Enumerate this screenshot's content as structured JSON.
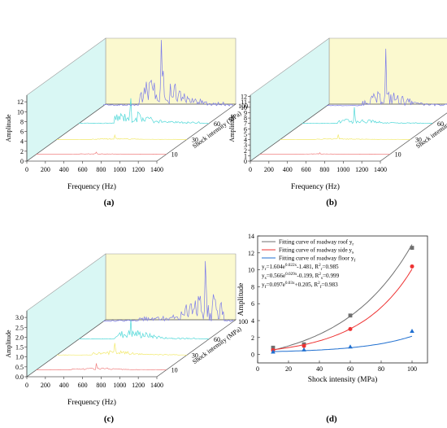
{
  "chart_data": [
    {
      "panel": "(a)",
      "type": "line",
      "xlabel": "Frequency (Hz)",
      "ylabel": "Amplitude",
      "x_ticks": [
        "0",
        "200",
        "400",
        "600",
        "800",
        "1000",
        "1200",
        "1400"
      ],
      "y_ticks": [
        "0",
        "2",
        "4",
        "6",
        "8",
        "10",
        "12"
      ],
      "z_ticks": [
        "10",
        "30",
        "60",
        "100"
      ],
      "depth_label": "Shock intensity (MPa)",
      "xlim": [
        0,
        1400
      ],
      "ylim": [
        0,
        12
      ],
      "series": [
        {
          "depth": "10",
          "color": "#f08080",
          "peak_x": 650,
          "peak": 0.4,
          "noise": 0.12
        },
        {
          "depth": "30",
          "color": "#f2e96a",
          "peak_x": 620,
          "peak": 0.8,
          "noise": 0.2
        },
        {
          "depth": "60",
          "color": "#4fd8d8",
          "peak_x": 560,
          "peak": 4.6,
          "noise": 2.2
        },
        {
          "depth": "100",
          "color": "#7b7bea",
          "peak_x": 620,
          "peak": 12.6,
          "noise": 6.0
        }
      ]
    },
    {
      "panel": "(b)",
      "type": "line",
      "xlabel": "Frequency (Hz)",
      "ylabel": "Amplitude",
      "x_ticks": [
        "0",
        "200",
        "400",
        "600",
        "800",
        "1000",
        "1200",
        "1400"
      ],
      "y_ticks": [
        "0",
        "1",
        "2",
        "3",
        "4",
        "5",
        "6",
        "7",
        "8",
        "9",
        "10",
        "11",
        "12"
      ],
      "z_ticks": [
        "10",
        "30",
        "60",
        "100"
      ],
      "depth_label": "Shock intensity (MPa)",
      "xlim": [
        0,
        1400
      ],
      "ylim": [
        0,
        12
      ],
      "series": [
        {
          "depth": "10",
          "color": "#f08080",
          "peak_x": 650,
          "peak": 0.3,
          "noise": 0.1
        },
        {
          "depth": "30",
          "color": "#f2e96a",
          "peak_x": 620,
          "peak": 0.9,
          "noise": 0.2
        },
        {
          "depth": "60",
          "color": "#4fd8d8",
          "peak_x": 560,
          "peak": 3.0,
          "noise": 1.0
        },
        {
          "depth": "100",
          "color": "#7b7bea",
          "peak_x": 640,
          "peak": 10.4,
          "noise": 2.5
        }
      ]
    },
    {
      "panel": "(c)",
      "type": "line",
      "xlabel": "Frequency (Hz)",
      "ylabel": "Amplitude",
      "x_ticks": [
        "0",
        "200",
        "400",
        "600",
        "800",
        "1000",
        "1200",
        "1400"
      ],
      "y_ticks": [
        "0.0",
        "0.5",
        "1.0",
        "1.5",
        "2.0",
        "2.5",
        "3.0"
      ],
      "z_ticks": [
        "10",
        "30",
        "60",
        "100"
      ],
      "depth_label": "Shock intensity (MPa)",
      "xlim": [
        0,
        1400
      ],
      "ylim": [
        0,
        3
      ],
      "series": [
        {
          "depth": "10",
          "color": "#f08080",
          "peak_x": 650,
          "peak": 0.3,
          "noise": 0.1
        },
        {
          "depth": "30",
          "color": "#f2e96a",
          "peak_x": 620,
          "peak": 0.55,
          "noise": 0.2
        },
        {
          "depth": "60",
          "color": "#4fd8d8",
          "peak_x": 560,
          "peak": 0.9,
          "noise": 0.4
        },
        {
          "depth": "100",
          "color": "#7b7bea",
          "peak_x": 1100,
          "peak": 2.75,
          "noise": 1.4
        }
      ]
    },
    {
      "panel": "(d)",
      "type": "scatter",
      "xlabel": "Shock intensity (MPa)",
      "ylabel": "Amplitude",
      "x_ticks": [
        "0",
        "20",
        "40",
        "60",
        "80",
        "100"
      ],
      "y_ticks": [
        "0",
        "2",
        "4",
        "6",
        "8",
        "10",
        "12",
        "14"
      ],
      "xlim": [
        0,
        110
      ],
      "ylim": [
        -1,
        14
      ],
      "x": [
        10,
        30,
        60,
        100
      ],
      "series": [
        {
          "name": "Fitting curve of roadway roof y",
          "sub": "r",
          "color": "#6f6f6f",
          "marker": "square",
          "values": [
            0.8,
            1.2,
            4.6,
            12.6
          ],
          "a": 1.604,
          "b": 0.022,
          "c": -1.481,
          "r2": "0.985",
          "eq": "y",
          "eq_sub": "r",
          "eq_rest": "=1.604e",
          "eq_sup": "0.022x",
          "eq_tail": "-1.481,   R",
          "eq_r2sup": "2",
          "eq_r2sub": "r",
          "eq_r2val": "=0.985"
        },
        {
          "name": "Fitting curve of roadway side y",
          "sub": "s",
          "color": "#ee3333",
          "marker": "circle",
          "values": [
            0.5,
            1.0,
            3.0,
            10.4
          ],
          "a": 0.566,
          "b": 0.029,
          "c": -0.199,
          "r2": "0.999",
          "eq": "y",
          "eq_sub": "s",
          "eq_rest": "=0.566e",
          "eq_sup": "0.029x",
          "eq_tail": "-0.199,   R",
          "eq_r2sup": "2",
          "eq_r2sub": "s",
          "eq_r2val": "=0.999"
        },
        {
          "name": "Fitting curve of roadway floor y",
          "sub": "f",
          "color": "#1f6fd0",
          "marker": "triangle",
          "values": [
            0.3,
            0.55,
            0.9,
            2.75
          ],
          "a": 0.097,
          "b": 0.03,
          "c": 0.205,
          "r2": "0.983",
          "eq": "y",
          "eq_sub": "f",
          "eq_rest": "=0.097e",
          "eq_sup": "0.03x",
          "eq_tail": "+0.205,   R",
          "eq_r2sup": "2",
          "eq_r2sub": "f",
          "eq_r2val": "=0.983"
        }
      ]
    }
  ]
}
